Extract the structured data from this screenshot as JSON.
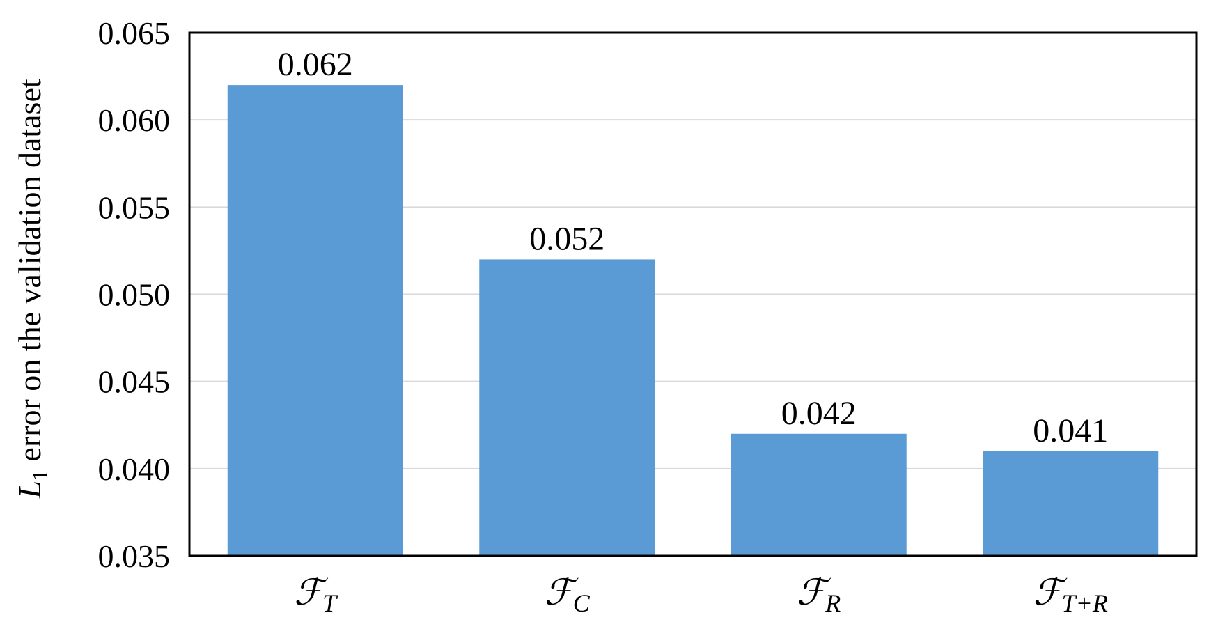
{
  "chart_data": {
    "type": "bar",
    "categories": [
      {
        "main": "ℱ",
        "sub": "T"
      },
      {
        "main": "ℱ",
        "sub": "C"
      },
      {
        "main": "ℱ",
        "sub": "R"
      },
      {
        "main": "ℱ",
        "sub": "T+R"
      }
    ],
    "values": [
      0.062,
      0.052,
      0.042,
      0.041
    ],
    "data_labels": [
      "0.062",
      "0.052",
      "0.042",
      "0.041"
    ],
    "ylabel": {
      "symbol": "L",
      "subscript": "1",
      "text": " error on the validation dataset"
    },
    "ylim": [
      0.035,
      0.065
    ],
    "yticks": [
      "0.035",
      "0.040",
      "0.045",
      "0.050",
      "0.055",
      "0.060",
      "0.065"
    ],
    "grid": true,
    "colors": {
      "bar": "#5B9BD5",
      "grid": "#d9d9d9",
      "axis": "#000000"
    }
  }
}
